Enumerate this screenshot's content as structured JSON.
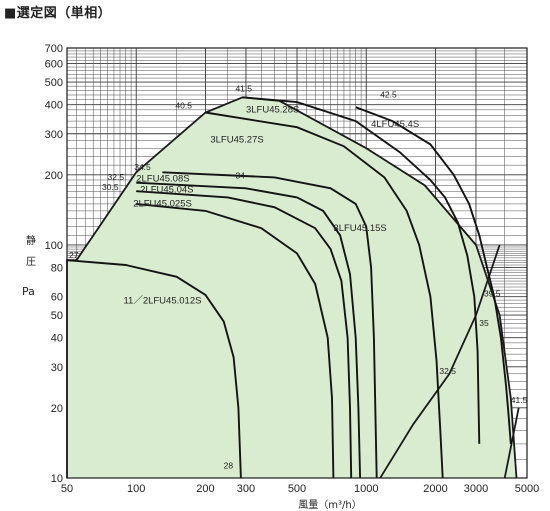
{
  "header": {
    "title": "■選定図（単相）"
  },
  "chart_data": {
    "type": "line",
    "title": "",
    "xlabel": "風量（m³/h）",
    "ylabel": [
      "静",
      "圧",
      "Pa"
    ],
    "x_scale": "log",
    "y_scale": "log",
    "xlim": [
      50,
      5000
    ],
    "ylim": [
      10,
      700
    ],
    "x_ticks": [
      "50",
      "100",
      "200",
      "300",
      "500",
      "1000",
      "2000",
      "3000",
      "5000"
    ],
    "y_ticks": [
      "10",
      "20",
      "30",
      "40",
      "50",
      "60",
      "80",
      "100",
      "200",
      "300",
      "400",
      "500",
      "600",
      "700"
    ],
    "grid": true,
    "selection_region": {
      "color": "#d9ecd0",
      "boundary": [
        [
          50,
          10
        ],
        [
          50,
          86
        ],
        [
          55,
          86
        ],
        [
          100,
          205
        ],
        [
          200,
          370
        ],
        [
          290,
          430
        ],
        [
          420,
          415
        ],
        [
          1000,
          260
        ],
        [
          1800,
          180
        ],
        [
          3000,
          100
        ],
        [
          3800,
          50
        ],
        [
          4250,
          22
        ],
        [
          4500,
          10
        ]
      ]
    },
    "series": [
      {
        "name": "11／2LFU45.012S",
        "label_at": [
          88,
          56
        ],
        "points": [
          [
            50,
            86
          ],
          [
            90,
            82
          ],
          [
            150,
            73
          ],
          [
            200,
            61
          ],
          [
            240,
            47
          ],
          [
            265,
            33
          ],
          [
            278,
            20
          ],
          [
            285,
            10
          ]
        ]
      },
      {
        "name": "2LFU45.025S",
        "label_at": [
          97,
          146
        ],
        "points": [
          [
            100,
            150
          ],
          [
            200,
            140
          ],
          [
            350,
            118
          ],
          [
            500,
            92
          ],
          [
            600,
            68
          ],
          [
            680,
            40
          ],
          [
            710,
            22
          ],
          [
            720,
            10
          ]
        ]
      },
      {
        "name": "2LFU45.04S",
        "label_at": [
          104,
          168
        ],
        "points": [
          [
            100,
            170
          ],
          [
            250,
            160
          ],
          [
            400,
            145
          ],
          [
            600,
            118
          ],
          [
            700,
            96
          ],
          [
            780,
            70
          ],
          [
            830,
            40
          ],
          [
            850,
            20
          ],
          [
            860,
            10
          ]
        ]
      },
      {
        "name": "2LFU45.08S",
        "label_at": [
          100,
          187
        ],
        "points": [
          [
            100,
            185
          ],
          [
            300,
            175
          ],
          [
            500,
            160
          ],
          [
            650,
            140
          ],
          [
            770,
            110
          ],
          [
            850,
            75
          ],
          [
            900,
            40
          ],
          [
            925,
            20
          ],
          [
            940,
            10
          ]
        ]
      },
      {
        "name": "3LFU45.15S",
        "label_at": [
          720,
          115
        ],
        "points": [
          [
            130,
            205
          ],
          [
            400,
            195
          ],
          [
            700,
            175
          ],
          [
            900,
            150
          ],
          [
            1000,
            120
          ],
          [
            1050,
            80
          ],
          [
            1080,
            40
          ],
          [
            1095,
            20
          ],
          [
            1110,
            10
          ]
        ]
      },
      {
        "name": "3LFU45.27S",
        "label_at": [
          210,
          275
        ],
        "points": [
          [
            200,
            370
          ],
          [
            500,
            320
          ],
          [
            800,
            265
          ],
          [
            1200,
            195
          ],
          [
            1500,
            140
          ],
          [
            1700,
            100
          ],
          [
            1900,
            60
          ],
          [
            2020,
            32
          ],
          [
            2100,
            16
          ],
          [
            2150,
            10
          ]
        ]
      },
      {
        "name": "3LFU45.28S",
        "label_at": [
          300,
          370
        ],
        "points": [
          [
            290,
            430
          ],
          [
            500,
            410
          ],
          [
            900,
            340
          ],
          [
            1400,
            250
          ],
          [
            1900,
            190
          ],
          [
            2200,
            160
          ],
          [
            2500,
            125
          ],
          [
            2750,
            90
          ],
          [
            2950,
            60
          ],
          [
            3050,
            35
          ],
          [
            3080,
            20
          ],
          [
            3100,
            14
          ]
        ]
      },
      {
        "name": "4LFU45.4S",
        "label_at": [
          1050,
          320
        ],
        "points": [
          [
            900,
            390
          ],
          [
            1300,
            340
          ],
          [
            1900,
            270
          ],
          [
            2400,
            200
          ],
          [
            2800,
            150
          ],
          [
            3100,
            110
          ],
          [
            3350,
            80
          ],
          [
            3600,
            60
          ],
          [
            3850,
            40
          ],
          [
            4050,
            25
          ],
          [
            4150,
            19
          ],
          [
            4250,
            14
          ]
        ]
      }
    ],
    "efficiency_curves": [
      {
        "points": [
          [
            1150,
            10
          ],
          [
            1600,
            17
          ],
          [
            2300,
            28
          ],
          [
            3000,
            50
          ],
          [
            3800,
            100
          ]
        ]
      },
      {
        "points": [
          [
            4000,
            10
          ],
          [
            4600,
            20
          ]
        ]
      }
    ],
    "point_labels": [
      {
        "text": "27",
        "at": [
          51,
          88
        ]
      },
      {
        "text": "34.5",
        "at": [
          98,
          210
        ]
      },
      {
        "text": "32.5",
        "at": [
          75,
          190
        ]
      },
      {
        "text": "30.5",
        "at": [
          71,
          172
        ]
      },
      {
        "text": "34",
        "at": [
          270,
          193
        ]
      },
      {
        "text": "40.5",
        "at": [
          148,
          385
        ]
      },
      {
        "text": "41.5",
        "at": [
          270,
          455
        ]
      },
      {
        "text": "42.5",
        "at": [
          1150,
          430
        ]
      },
      {
        "text": "39.5",
        "at": [
          3250,
          60
        ]
      },
      {
        "text": "35",
        "at": [
          3100,
          45
        ]
      },
      {
        "text": "32.5",
        "at": [
          2080,
          28
        ]
      },
      {
        "text": "41.5",
        "at": [
          4250,
          21
        ]
      },
      {
        "text": "28",
        "at": [
          240,
          11
        ]
      }
    ]
  }
}
